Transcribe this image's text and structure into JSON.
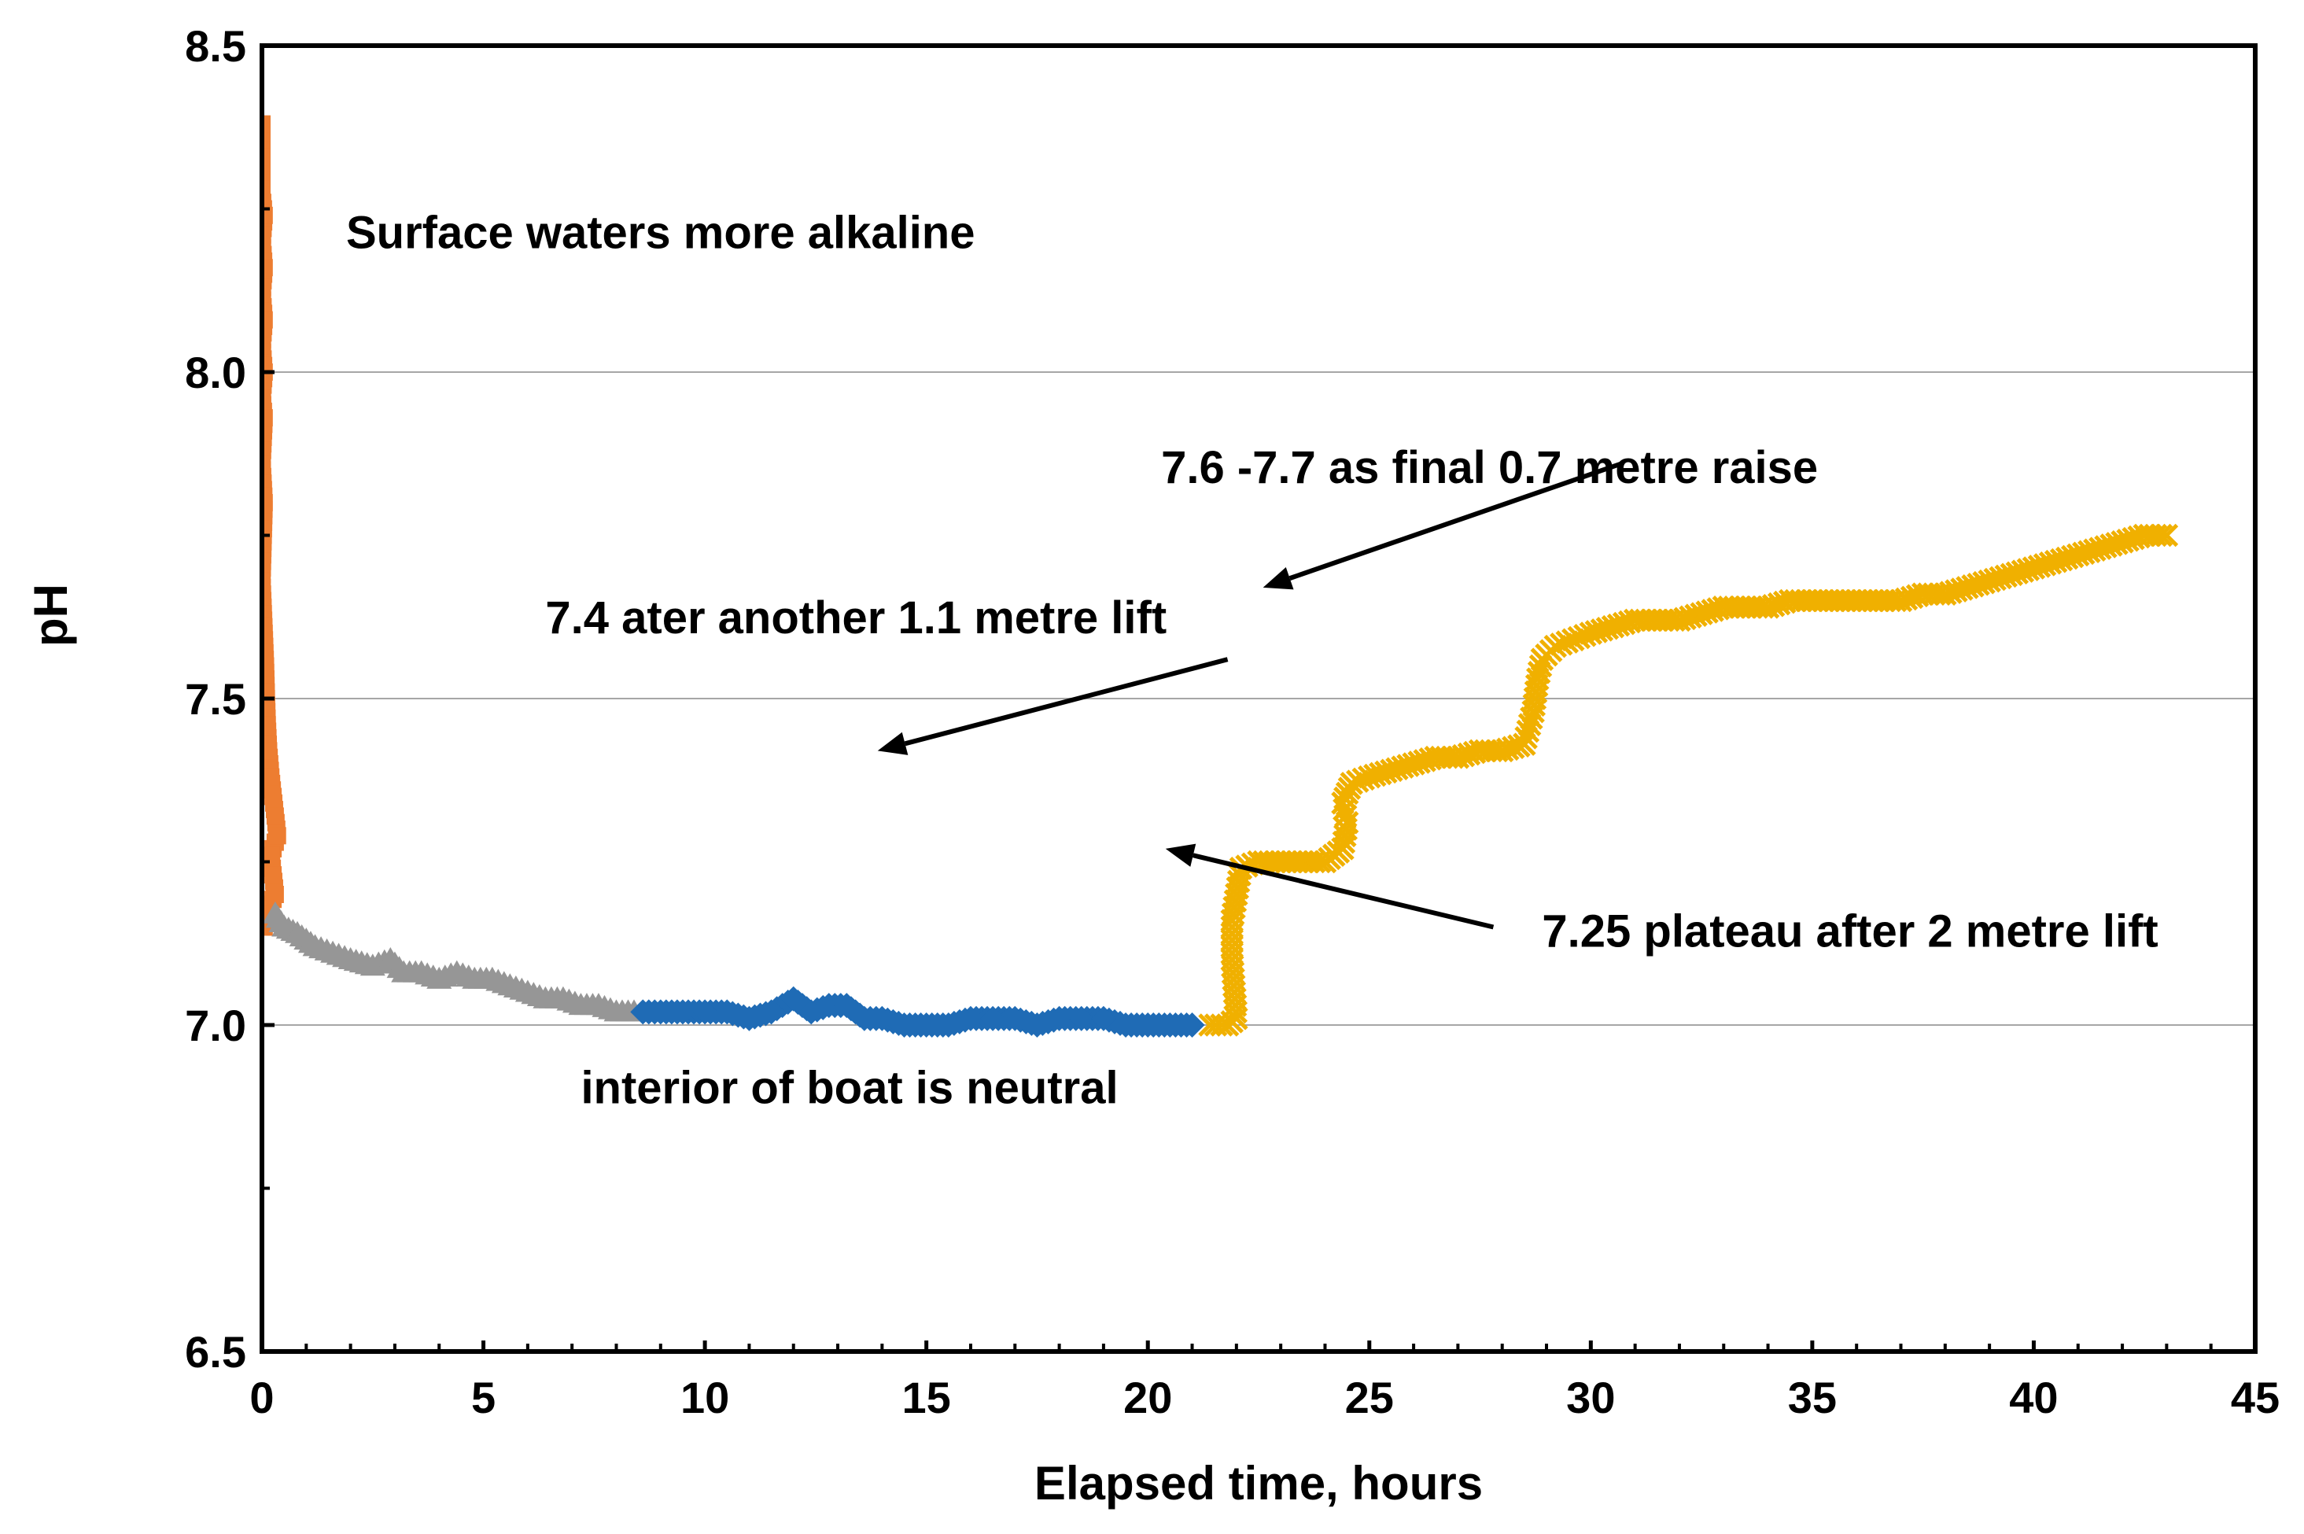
{
  "chart_data": {
    "type": "scatter",
    "title": "",
    "xlabel": "Elapsed time, hours",
    "ylabel": "pH",
    "xlim": [
      0,
      45
    ],
    "ylim": [
      6.5,
      8.5
    ],
    "x_ticks": [
      "0",
      "5",
      "10",
      "15",
      "20",
      "25",
      "30",
      "35",
      "40",
      "45"
    ],
    "y_ticks": [
      "6.5",
      "7.0",
      "7.5",
      "8.0",
      "8.5"
    ],
    "grid": "horizontal",
    "legend": "none",
    "series": [
      {
        "color": "#ED7D31",
        "marker": "square",
        "points": [
          [
            0.0,
            8.38
          ],
          [
            0.0,
            8.33
          ],
          [
            0.0,
            8.27
          ],
          [
            0.05,
            8.24
          ],
          [
            0.0,
            8.2
          ],
          [
            0.05,
            8.16
          ],
          [
            0.0,
            8.12
          ],
          [
            0.05,
            8.08
          ],
          [
            0.0,
            8.04
          ],
          [
            0.05,
            8.0
          ],
          [
            0.0,
            7.96
          ],
          [
            0.05,
            7.93
          ],
          [
            0.0,
            7.86
          ],
          [
            0.05,
            7.8
          ],
          [
            0.0,
            7.68
          ],
          [
            0.05,
            7.6
          ],
          [
            0.08,
            7.55
          ],
          [
            0.1,
            7.5
          ],
          [
            0.12,
            7.46
          ],
          [
            0.15,
            7.42
          ],
          [
            0.2,
            7.38
          ],
          [
            0.25,
            7.35
          ],
          [
            0.3,
            7.32
          ],
          [
            0.35,
            7.29
          ],
          [
            0.2,
            7.26
          ],
          [
            0.25,
            7.23
          ],
          [
            0.3,
            7.2
          ],
          [
            0.1,
            7.17
          ],
          [
            0.05,
            7.15
          ]
        ]
      },
      {
        "color": "#969696",
        "marker": "triangle",
        "points": [
          [
            0.3,
            7.17
          ],
          [
            0.5,
            7.15
          ],
          [
            0.8,
            7.14
          ],
          [
            1.2,
            7.12
          ],
          [
            1.6,
            7.11
          ],
          [
            2.0,
            7.1
          ],
          [
            2.5,
            7.09
          ],
          [
            2.9,
            7.1
          ],
          [
            3.2,
            7.08
          ],
          [
            3.6,
            7.08
          ],
          [
            4.0,
            7.07
          ],
          [
            4.4,
            7.08
          ],
          [
            4.8,
            7.07
          ],
          [
            5.2,
            7.07
          ],
          [
            5.6,
            7.06
          ],
          [
            6.0,
            7.05
          ],
          [
            6.4,
            7.04
          ],
          [
            6.8,
            7.04
          ],
          [
            7.2,
            7.03
          ],
          [
            7.6,
            7.03
          ],
          [
            8.0,
            7.02
          ],
          [
            8.4,
            7.02
          ]
        ]
      },
      {
        "color": "#1F6BB5",
        "marker": "diamond",
        "points": [
          [
            8.6,
            7.02
          ],
          [
            9.0,
            7.02
          ],
          [
            9.5,
            7.02
          ],
          [
            10.0,
            7.02
          ],
          [
            10.5,
            7.02
          ],
          [
            11.0,
            7.01
          ],
          [
            11.5,
            7.02
          ],
          [
            12.0,
            7.04
          ],
          [
            12.4,
            7.02
          ],
          [
            12.8,
            7.03
          ],
          [
            13.2,
            7.03
          ],
          [
            13.6,
            7.01
          ],
          [
            14.0,
            7.01
          ],
          [
            14.5,
            7.0
          ],
          [
            15.0,
            7.0
          ],
          [
            15.5,
            7.0
          ],
          [
            16.0,
            7.01
          ],
          [
            16.5,
            7.01
          ],
          [
            17.0,
            7.01
          ],
          [
            17.5,
            7.0
          ],
          [
            18.0,
            7.01
          ],
          [
            18.5,
            7.01
          ],
          [
            19.0,
            7.01
          ],
          [
            19.5,
            7.0
          ],
          [
            20.0,
            7.0
          ],
          [
            20.5,
            7.0
          ],
          [
            21.0,
            7.0
          ]
        ]
      },
      {
        "color": "#F0B000",
        "marker": "x",
        "points": [
          [
            21.4,
            7.0
          ],
          [
            21.8,
            7.0
          ],
          [
            22.0,
            7.01
          ],
          [
            21.9,
            7.1
          ],
          [
            21.9,
            7.16
          ],
          [
            22.0,
            7.2
          ],
          [
            22.1,
            7.24
          ],
          [
            22.5,
            7.25
          ],
          [
            23.0,
            7.25
          ],
          [
            23.5,
            7.25
          ],
          [
            24.0,
            7.25
          ],
          [
            24.4,
            7.27
          ],
          [
            24.5,
            7.31
          ],
          [
            24.4,
            7.34
          ],
          [
            24.6,
            7.37
          ],
          [
            25.0,
            7.38
          ],
          [
            25.5,
            7.39
          ],
          [
            26.0,
            7.4
          ],
          [
            26.5,
            7.41
          ],
          [
            27.0,
            7.41
          ],
          [
            27.5,
            7.42
          ],
          [
            28.0,
            7.42
          ],
          [
            28.5,
            7.43
          ],
          [
            28.7,
            7.48
          ],
          [
            28.8,
            7.53
          ],
          [
            28.9,
            7.56
          ],
          [
            29.2,
            7.58
          ],
          [
            29.6,
            7.59
          ],
          [
            30.0,
            7.6
          ],
          [
            30.5,
            7.61
          ],
          [
            31.0,
            7.62
          ],
          [
            31.5,
            7.62
          ],
          [
            32.0,
            7.62
          ],
          [
            32.5,
            7.63
          ],
          [
            33.0,
            7.64
          ],
          [
            33.5,
            7.64
          ],
          [
            34.0,
            7.64
          ],
          [
            34.5,
            7.65
          ],
          [
            35.0,
            7.65
          ],
          [
            35.5,
            7.65
          ],
          [
            36.0,
            7.65
          ],
          [
            36.5,
            7.65
          ],
          [
            37.0,
            7.65
          ],
          [
            37.5,
            7.66
          ],
          [
            38.0,
            7.66
          ],
          [
            38.5,
            7.67
          ],
          [
            39.0,
            7.68
          ],
          [
            39.5,
            7.69
          ],
          [
            40.0,
            7.7
          ],
          [
            40.5,
            7.71
          ],
          [
            41.0,
            7.72
          ],
          [
            41.5,
            7.73
          ],
          [
            42.0,
            7.74
          ],
          [
            42.5,
            7.75
          ],
          [
            43.0,
            7.75
          ]
        ]
      }
    ],
    "annotations": [
      {
        "text": "Surface waters more alkaline",
        "x": 1.9,
        "y": 8.19
      },
      {
        "text": "7.6 -7.7 as final 0.7 metre raise",
        "x": 20.3,
        "y": 7.83
      },
      {
        "text": "7.4 ater another 1.1 metre lift",
        "x": 6.4,
        "y": 7.6
      },
      {
        "text": "7.25 plateau after 2 metre lift",
        "x": 28.9,
        "y": 7.12
      },
      {
        "text": "interior of boat is neutral",
        "x": 7.2,
        "y": 6.88
      }
    ],
    "arrows": [
      {
        "from": [
          30.7,
          7.86
        ],
        "to": [
          22.6,
          7.67
        ]
      },
      {
        "from": [
          21.8,
          7.56
        ],
        "to": [
          13.9,
          7.42
        ]
      },
      {
        "from": [
          27.8,
          7.15
        ],
        "to": [
          20.4,
          7.27
        ]
      }
    ]
  }
}
